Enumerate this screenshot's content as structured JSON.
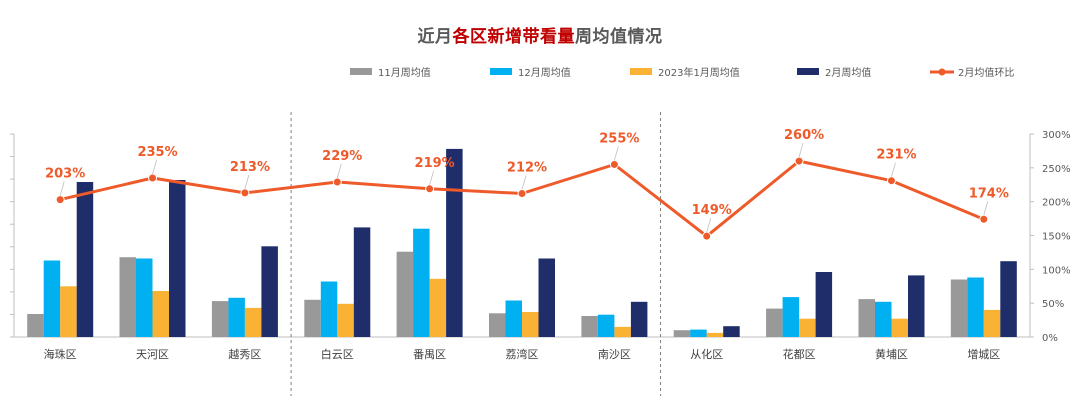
{
  "chart_data": {
    "type": "bar",
    "title_parts": [
      "近月",
      "各区新增带看量",
      "周均值情况"
    ],
    "categories": [
      "海珠区",
      "天河区",
      "越秀区",
      "白云区",
      "番禺区",
      "荔湾区",
      "南沙区",
      "从化区",
      "花都区",
      "黄埔区",
      "增城区"
    ],
    "series": [
      {
        "name": "11月周均值",
        "color": "#999999",
        "values": [
          34,
          118,
          53,
          55,
          126,
          35,
          31,
          10,
          42,
          56,
          85
        ]
      },
      {
        "name": "12月周均值",
        "color": "#00b0f0",
        "values": [
          113,
          116,
          58,
          82,
          160,
          54,
          33,
          11,
          59,
          52,
          88
        ]
      },
      {
        "name": "2023年1月周均值",
        "color": "#f9b233",
        "values": [
          75,
          68,
          43,
          49,
          86,
          37,
          15,
          6,
          27,
          27,
          40
        ]
      },
      {
        "name": "2月周均值",
        "color": "#1f2d6b",
        "values": [
          229,
          232,
          134,
          162,
          278,
          116,
          52,
          16,
          96,
          91,
          112
        ]
      }
    ],
    "line_series": {
      "name": "2月均值环比",
      "color": "#ee5a2a",
      "values": [
        203,
        235,
        213,
        229,
        219,
        212,
        255,
        149,
        260,
        231,
        174
      ],
      "labels": [
        "203%",
        "235%",
        "213%",
        "229%",
        "219%",
        "212%",
        "255%",
        "149%",
        "260%",
        "231%",
        "174%"
      ]
    },
    "left_ylim": [
      0,
      300
    ],
    "right_ylim": [
      0,
      300
    ],
    "right_ticks": [
      "0%",
      "50%",
      "100%",
      "150%",
      "200%",
      "250%",
      "300%"
    ],
    "group_dividers_after": [
      2,
      6
    ],
    "legend_position": "top-right",
    "grid": false
  }
}
